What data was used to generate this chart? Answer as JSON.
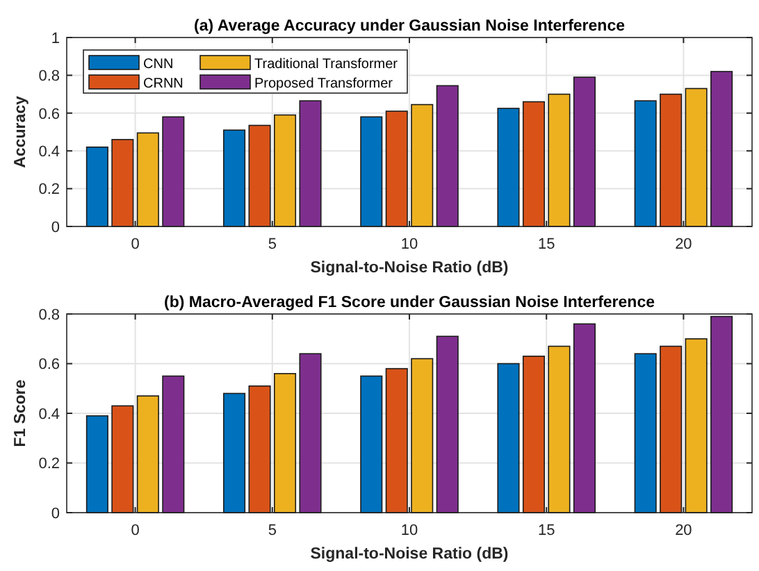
{
  "chart_data": [
    {
      "type": "bar",
      "title": "(a) Average Accuracy under Gaussian Noise Interference",
      "xlabel": "Signal-to-Noise Ratio (dB)",
      "ylabel": "Accuracy",
      "categories": [
        "0",
        "5",
        "10",
        "15",
        "20"
      ],
      "ylim": [
        0,
        1
      ],
      "yticks": [
        0,
        0.2,
        0.4,
        0.6,
        0.8,
        1
      ],
      "grid": true,
      "legend": "top left",
      "series": [
        {
          "name": "CNN",
          "color": "#0072bd",
          "values": [
            0.42,
            0.51,
            0.58,
            0.625,
            0.665
          ]
        },
        {
          "name": "CRNN",
          "color": "#d95319",
          "values": [
            0.46,
            0.535,
            0.61,
            0.66,
            0.7
          ]
        },
        {
          "name": "Traditional Transformer",
          "color": "#edb120",
          "values": [
            0.495,
            0.59,
            0.645,
            0.7,
            0.73
          ]
        },
        {
          "name": "Proposed Transformer",
          "color": "#7e2f8e",
          "values": [
            0.58,
            0.665,
            0.745,
            0.79,
            0.82
          ]
        }
      ]
    },
    {
      "type": "bar",
      "title": "(b) Macro-Averaged F1 Score under Gaussian Noise Interference",
      "xlabel": "Signal-to-Noise Ratio (dB)",
      "ylabel": "F1 Score",
      "categories": [
        "0",
        "5",
        "10",
        "15",
        "20"
      ],
      "ylim": [
        0,
        0.8
      ],
      "yticks": [
        0,
        0.2,
        0.4,
        0.6,
        0.8
      ],
      "grid": true,
      "series": [
        {
          "color": "#0072bd",
          "values": [
            0.39,
            0.48,
            0.55,
            0.6,
            0.64
          ]
        },
        {
          "color": "#d95319",
          "values": [
            0.43,
            0.51,
            0.58,
            0.63,
            0.67
          ]
        },
        {
          "color": "#edb120",
          "values": [
            0.47,
            0.56,
            0.62,
            0.67,
            0.7
          ]
        },
        {
          "color": "#7e2f8e",
          "values": [
            0.55,
            0.64,
            0.71,
            0.76,
            0.79
          ]
        }
      ]
    }
  ]
}
